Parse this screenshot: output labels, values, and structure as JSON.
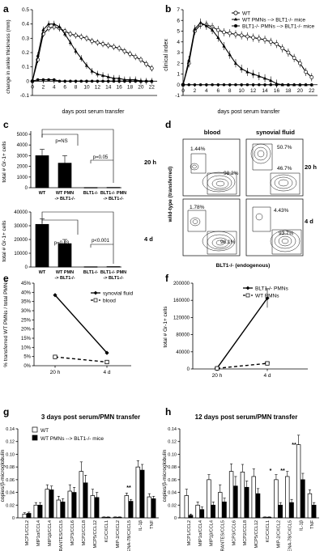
{
  "panels": {
    "a": {
      "letter": "a",
      "ylabel": "change in ankle thickness (mm)",
      "xlabel": "days post serum transfer",
      "yticks": [
        "0.5",
        "0.4",
        "0.3",
        "0.2",
        "0.1",
        "0",
        "-0.1"
      ],
      "xticks": [
        "0",
        "2",
        "4",
        "6",
        "8",
        "10",
        "12",
        "14",
        "16",
        "18",
        "20",
        "22"
      ]
    },
    "b": {
      "letter": "b",
      "ylabel": "clinical index",
      "xlabel": "days post serum transfer",
      "yticks": [
        "7",
        "6",
        "5",
        "4",
        "3",
        "2",
        "1",
        "0",
        "-1"
      ],
      "xticks": [
        "0",
        "2",
        "4",
        "6",
        "8",
        "10",
        "12",
        "14",
        "16",
        "18",
        "20",
        "22"
      ],
      "legend": [
        "WT",
        "WT PMNs --> BLT1-/- mice",
        "BLT1-/- PMNs --> BLT1-/- mice"
      ]
    },
    "c": {
      "letter": "c",
      "ylabel": "total # Gr-1+ cells",
      "top": {
        "label": "20 h",
        "yticks": [
          "5000",
          "4000",
          "3000",
          "2000",
          "1000",
          "0"
        ],
        "pvals": [
          "p=NS",
          "p=0.05"
        ]
      },
      "bottom": {
        "label": "4 d",
        "yticks": [
          "40000",
          "30000",
          "20000",
          "10000",
          "0"
        ],
        "pvals": [
          "p=0.03",
          "p<0.001"
        ]
      },
      "categories": [
        "WT",
        "WT PMN -> BLT1-/-",
        "BLT1-/-",
        "BLT1-/- PMN -> BLT1-/-"
      ]
    },
    "d": {
      "letter": "d",
      "col_labels": [
        "blood",
        "synovial fluid"
      ],
      "row_labels": [
        "20 h",
        "4 d"
      ],
      "ylabel": "wild-type (transferred)",
      "xlabel": "BLT1-/- (endogenous)",
      "percents": {
        "blood_20h": [
          "1.44%",
          "98.2%"
        ],
        "sf_20h": [
          "50.7%",
          "46.7%"
        ],
        "blood_4d": [
          "1.78%",
          "98.1%"
        ],
        "sf_4d": [
          "4.43%",
          "93.7%"
        ]
      }
    },
    "e": {
      "letter": "e",
      "ylabel": "% transferred WT PMNs / total PMNs",
      "yticks": [
        "45%",
        "40%",
        "35%",
        "30%",
        "25%",
        "20%",
        "15%",
        "10%",
        "5%",
        "0%"
      ],
      "xticks": [
        "20 h",
        "4 d"
      ],
      "legend": [
        "synovial fluid",
        "blood"
      ]
    },
    "f": {
      "letter": "f",
      "ylabel": "total # Gr-1+ cells",
      "yticks": [
        "200000",
        "160000",
        "120000",
        "80000",
        "40000",
        "0"
      ],
      "xticks": [
        "20 h",
        "4 d"
      ],
      "legend": [
        "BLT1-/- PMNs",
        "WT PMNs"
      ]
    },
    "g": {
      "letter": "g",
      "title": "3 days post serum/PMN transfer",
      "ylabel": "copies/β-microglobulin",
      "yticks": [
        "0.14",
        "0.12",
        "0.10",
        "0.08",
        "0.06",
        "0.04",
        "0.02",
        "0"
      ],
      "legend": [
        "WT",
        "WT PMNs --> BLT1-/- mice"
      ],
      "stars": [
        "**"
      ]
    },
    "h": {
      "letter": "h",
      "title": "12 days post serum/PMN transfer",
      "ylabel": "copies/β-microglobulin",
      "yticks": [
        "0.14",
        "0.12",
        "0.10",
        "0.08",
        "0.06",
        "0.04",
        "0.02",
        "0"
      ],
      "stars": [
        "*",
        "**",
        "**"
      ]
    },
    "gene_labels": [
      "MCP1/CCL2",
      "MIP1α/CCL4",
      "MIP1β/CCL4",
      "RANTES/CCL5",
      "MCP3/CCL6",
      "MCP2/CCL8",
      "MCP5/CCL12",
      "KC/CXCL1",
      "MIP-2/CXCL2",
      "ENA-78/CXCL5",
      "IL-1β",
      "TNF"
    ]
  },
  "chart_data": [
    {
      "panel": "a",
      "type": "line",
      "x": [
        0,
        1,
        2,
        3,
        4,
        5,
        6,
        7,
        8,
        9,
        10,
        11,
        12,
        13,
        14,
        15,
        16,
        17,
        18,
        19,
        20,
        21,
        22
      ],
      "xlim": [
        0,
        23
      ],
      "ylim": [
        -0.1,
        0.5
      ],
      "series": [
        {
          "name": "WT",
          "values": [
            0,
            0.15,
            0.33,
            0.37,
            0.38,
            0.37,
            0.35,
            0.33,
            0.32,
            0.31,
            0.3,
            0.28,
            0.27,
            0.26,
            0.25,
            0.24,
            0.23,
            0.21,
            0.19,
            0.17,
            0.15,
            0.12,
            0.09
          ]
        },
        {
          "name": "WT PMNs --> BLT1-/- mice",
          "values": [
            0,
            0.18,
            0.36,
            0.4,
            0.4,
            0.38,
            0.33,
            0.27,
            0.21,
            0.16,
            0.11,
            0.07,
            0.05,
            0.04,
            0.03,
            0.02,
            0.02,
            0.01,
            0.01,
            0.01,
            0.0,
            0.0,
            0.0
          ]
        },
        {
          "name": "BLT1-/- PMNs --> BLT1-/- mice",
          "values": [
            0,
            0.01,
            0.01,
            0.01,
            0.01,
            0.0,
            0.0,
            0.0,
            0.0,
            0.0,
            0.0,
            0.0,
            0.0,
            0.0,
            0.0,
            0.0,
            0.0,
            0.0,
            0.0,
            0.0,
            0.0,
            0.0,
            0.0
          ]
        }
      ]
    },
    {
      "panel": "b",
      "type": "line",
      "x": [
        0,
        1,
        2,
        3,
        4,
        5,
        6,
        7,
        8,
        9,
        10,
        11,
        12,
        13,
        14,
        15,
        16,
        17,
        18,
        19,
        20,
        21,
        22
      ],
      "xlim": [
        0,
        23
      ],
      "ylim": [
        -1,
        7
      ],
      "series": [
        {
          "name": "WT",
          "values": [
            0,
            2.0,
            5.0,
            5.6,
            5.6,
            5.4,
            5.1,
            4.9,
            4.8,
            4.7,
            4.6,
            4.5,
            4.4,
            4.3,
            4.2,
            4.0,
            3.8,
            3.4,
            3.0,
            2.5,
            2.0,
            1.2,
            0.7
          ]
        },
        {
          "name": "WT PMNs --> BLT1-/- mice",
          "values": [
            0,
            2.3,
            5.2,
            5.8,
            5.5,
            5.1,
            4.4,
            3.6,
            2.8,
            2.0,
            1.5,
            1.2,
            1.0,
            0.8,
            0.6,
            0.4,
            0.1,
            0,
            0,
            0,
            0,
            0,
            0
          ]
        },
        {
          "name": "BLT1-/- PMNs --> BLT1-/- mice",
          "values": [
            0,
            0,
            0,
            0,
            0,
            0,
            0,
            0,
            0,
            0,
            0,
            0,
            0,
            0,
            0,
            0,
            0,
            0,
            0,
            0,
            0,
            0,
            0
          ]
        }
      ]
    },
    {
      "panel": "c-20h",
      "type": "bar",
      "categories": [
        "WT",
        "WT PMN -> BLT1-/-",
        "BLT1-/-",
        "BLT1-/- PMN -> BLT1-/-"
      ],
      "values": [
        3000,
        2300,
        20,
        30
      ],
      "errors": [
        600,
        700,
        10,
        15
      ],
      "ylim": [
        0,
        5000
      ]
    },
    {
      "panel": "c-4d",
      "type": "bar",
      "categories": [
        "WT",
        "WT PMN -> BLT1-/-",
        "BLT1-/-",
        "BLT1-/- PMN -> BLT1-/-"
      ],
      "values": [
        31000,
        17000,
        200,
        300
      ],
      "errors": [
        4000,
        3000,
        100,
        150
      ],
      "ylim": [
        0,
        40000
      ]
    },
    {
      "panel": "e",
      "type": "line",
      "categories": [
        "20 h",
        "4 d"
      ],
      "ylim": [
        0,
        45
      ],
      "series": [
        {
          "name": "synovial fluid",
          "values": [
            38.5,
            7.0
          ]
        },
        {
          "name": "blood",
          "values": [
            4.8,
            2.0
          ]
        }
      ]
    },
    {
      "panel": "f",
      "type": "line",
      "categories": [
        "20 h",
        "4 d"
      ],
      "ylim": [
        0,
        200000
      ],
      "series": [
        {
          "name": "BLT1-/- PMNs",
          "values": [
            2000,
            165000
          ],
          "errors": [
            500,
            22000
          ]
        },
        {
          "name": "WT PMNs",
          "values": [
            1500,
            13000
          ],
          "errors": [
            400,
            2000
          ]
        }
      ]
    },
    {
      "panel": "g",
      "type": "bar",
      "ylim": [
        0,
        0.14
      ],
      "series": [
        {
          "name": "WT",
          "values": [
            0.006,
            0.02,
            0.045,
            0.028,
            0.042,
            0.073,
            0.035,
            0.001,
            0.001,
            0.035,
            0.08,
            0.033
          ],
          "errors": [
            0.002,
            0.004,
            0.007,
            0.006,
            0.01,
            0.015,
            0.01,
            0.0005,
            0.0005,
            0.004,
            0.01,
            0.005
          ]
        },
        {
          "name": "WT PMNs --> BLT1-/- mice",
          "values": [
            0.007,
            0.02,
            0.044,
            0.025,
            0.04,
            0.055,
            0.032,
            0.001,
            0.001,
            0.026,
            0.075,
            0.03
          ],
          "errors": [
            0.002,
            0.004,
            0.006,
            0.005,
            0.008,
            0.012,
            0.008,
            0.0005,
            0.0005,
            0.003,
            0.009,
            0.004
          ]
        }
      ]
    },
    {
      "panel": "h",
      "type": "bar",
      "ylim": [
        0,
        0.14
      ],
      "series": [
        {
          "name": "WT",
          "values": [
            0.035,
            0.02,
            0.06,
            0.04,
            0.073,
            0.072,
            0.065,
            0.001,
            0.06,
            0.065,
            0.115,
            0.038
          ],
          "errors": [
            0.01,
            0.005,
            0.008,
            0.012,
            0.012,
            0.012,
            0.012,
            0.0005,
            0.008,
            0.008,
            0.015,
            0.006
          ]
        },
        {
          "name": "WT PMNs --> BLT1-/- mice",
          "values": [
            0.004,
            0.013,
            0.02,
            0.025,
            0.05,
            0.048,
            0.038,
            0.001,
            0.02,
            0.024,
            0.06,
            0.02
          ],
          "errors": [
            0.002,
            0.004,
            0.005,
            0.006,
            0.015,
            0.01,
            0.008,
            0.0005,
            0.004,
            0.005,
            0.01,
            0.004
          ]
        }
      ]
    }
  ]
}
